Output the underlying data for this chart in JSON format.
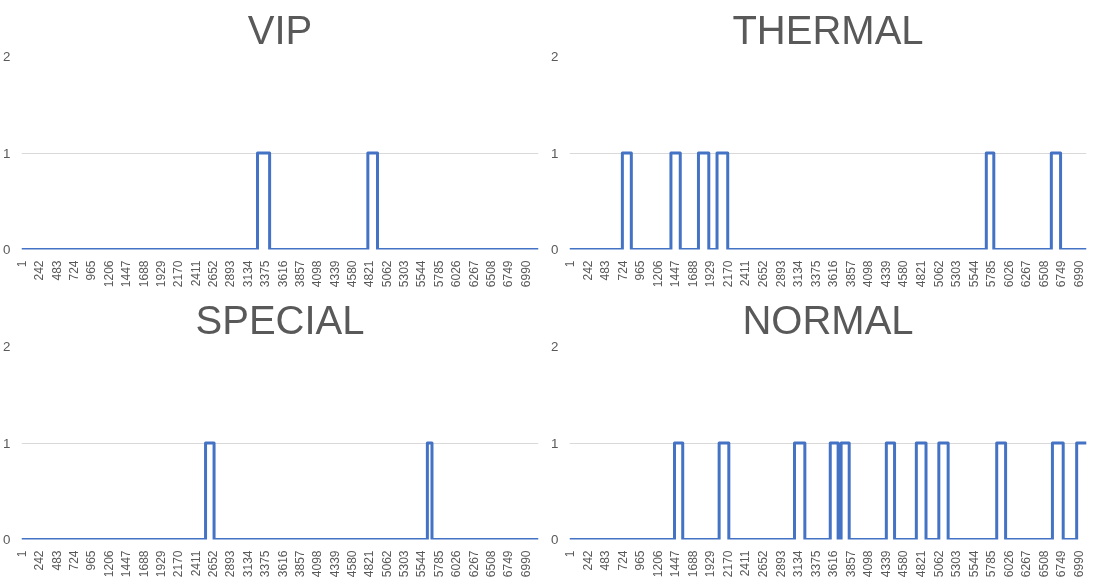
{
  "chart_data": [
    {
      "type": "step",
      "title": "VIP",
      "color": "#4472c4",
      "x": [
        1,
        3276,
        3444,
        4807,
        4941,
        7175
      ],
      "values": [
        0,
        1,
        0,
        1,
        0,
        0
      ],
      "xlim": [
        1,
        7175
      ],
      "xticks": [
        1,
        242,
        483,
        724,
        965,
        1206,
        1447,
        1688,
        1929,
        2170,
        2411,
        2652,
        2893,
        3134,
        3375,
        3616,
        3857,
        4098,
        4339,
        4580,
        4821,
        5062,
        5303,
        5544,
        5785,
        6026,
        6267,
        6508,
        6749,
        6990
      ],
      "ylim": [
        0,
        2
      ],
      "yticks": [
        0,
        1,
        2
      ],
      "grid": "y"
    },
    {
      "type": "step",
      "title": "THERMAL",
      "color": "#4472c4",
      "x": [
        1,
        727,
        850,
        1394,
        1522,
        1772,
        1914,
        2027,
        2174,
        5725,
        5828,
        6618,
        6745,
        7101
      ],
      "values": [
        0,
        1,
        0,
        1,
        0,
        1,
        0,
        1,
        0,
        1,
        0,
        1,
        0,
        0
      ],
      "xlim": [
        1,
        7101
      ],
      "xticks": [
        1,
        242,
        483,
        724,
        965,
        1206,
        1447,
        1688,
        1929,
        2170,
        2411,
        2652,
        2893,
        3134,
        3375,
        3616,
        3857,
        4098,
        4339,
        4580,
        4821,
        5062,
        5303,
        5544,
        5785,
        6026,
        6267,
        6508,
        6749,
        6990
      ],
      "ylim": [
        0,
        2
      ],
      "yticks": [
        0,
        1,
        2
      ],
      "grid": "y"
    },
    {
      "type": "step",
      "title": "SPECIAL",
      "color": "#4472c4",
      "x": [
        1,
        2555,
        2673,
        5633,
        5697,
        7175
      ],
      "values": [
        0,
        1,
        0,
        1,
        0,
        0
      ],
      "xlim": [
        1,
        7175
      ],
      "xticks": [
        1,
        242,
        483,
        724,
        965,
        1206,
        1447,
        1688,
        1929,
        2170,
        2411,
        2652,
        2893,
        3134,
        3375,
        3616,
        3857,
        4098,
        4339,
        4580,
        4821,
        5062,
        5303,
        5544,
        5785,
        6026,
        6267,
        6508,
        6749,
        6990
      ],
      "ylim": [
        0,
        2
      ],
      "yticks": [
        0,
        1,
        2
      ],
      "grid": "y"
    },
    {
      "type": "step",
      "title": "NORMAL",
      "color": "#4472c4",
      "x": [
        1,
        1443,
        1556,
        2056,
        2189,
        3091,
        3233,
        3582,
        3690,
        3731,
        3842,
        4352,
        4465,
        4764,
        4897,
        5073,
        5201,
        5868,
        5990,
        6633,
        6781,
        6966,
        7101
      ],
      "values": [
        0,
        1,
        0,
        1,
        0,
        1,
        0,
        1,
        0,
        1,
        0,
        1,
        0,
        1,
        0,
        1,
        0,
        1,
        0,
        1,
        0,
        1,
        1
      ],
      "xlim": [
        1,
        7101
      ],
      "xticks": [
        1,
        242,
        483,
        724,
        965,
        1206,
        1447,
        1688,
        1929,
        2170,
        2411,
        2652,
        2893,
        3134,
        3375,
        3616,
        3857,
        4098,
        4339,
        4580,
        4821,
        5062,
        5303,
        5544,
        5785,
        6026,
        6267,
        6508,
        6749,
        6990
      ],
      "ylim": [
        0,
        2
      ],
      "yticks": [
        0,
        1,
        2
      ],
      "grid": "y"
    }
  ]
}
